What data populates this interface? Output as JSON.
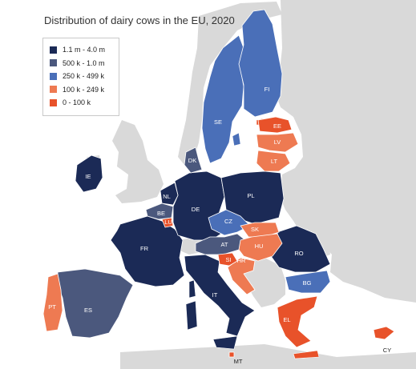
{
  "title": "Distribution of dairy cows in the EU, 2020",
  "colors": {
    "sea": "#ffffff",
    "non_eu_land": "#d9d9d9",
    "borders": "#ffffff",
    "class_1": "#1b2a56",
    "class_2": "#4b587d",
    "class_3": "#4a6fb8",
    "class_4": "#ee7a52",
    "class_5": "#e8522a"
  },
  "legend": {
    "items": [
      {
        "label": "1.1 m - 4.0 m",
        "class": "class_1"
      },
      {
        "label": "500 k - 1.0 m",
        "class": "class_2"
      },
      {
        "label": "250 k - 499 k",
        "class": "class_3"
      },
      {
        "label": "100 k - 249 k",
        "class": "class_4"
      },
      {
        "label": "0 - 100 k",
        "class": "class_5"
      }
    ]
  },
  "countries": [
    {
      "code": "FR",
      "class": "class_1"
    },
    {
      "code": "DE",
      "class": "class_1"
    },
    {
      "code": "NL",
      "class": "class_1"
    },
    {
      "code": "PL",
      "class": "class_1"
    },
    {
      "code": "IE",
      "class": "class_1"
    },
    {
      "code": "IT",
      "class": "class_1"
    },
    {
      "code": "RO",
      "class": "class_1"
    },
    {
      "code": "BE",
      "class": "class_2"
    },
    {
      "code": "DK",
      "class": "class_2"
    },
    {
      "code": "AT",
      "class": "class_2"
    },
    {
      "code": "ES",
      "class": "class_2"
    },
    {
      "code": "SE",
      "class": "class_3"
    },
    {
      "code": "FI",
      "class": "class_3"
    },
    {
      "code": "CZ",
      "class": "class_3"
    },
    {
      "code": "BG",
      "class": "class_3"
    },
    {
      "code": "LV",
      "class": "class_4"
    },
    {
      "code": "LT",
      "class": "class_4"
    },
    {
      "code": "SK",
      "class": "class_4"
    },
    {
      "code": "HU",
      "class": "class_4"
    },
    {
      "code": "HR",
      "class": "class_4"
    },
    {
      "code": "PT",
      "class": "class_4"
    },
    {
      "code": "EE",
      "class": "class_5"
    },
    {
      "code": "LU",
      "class": "class_5"
    },
    {
      "code": "SI",
      "class": "class_5"
    },
    {
      "code": "EL",
      "class": "class_5"
    },
    {
      "code": "MT",
      "class": "class_5"
    },
    {
      "code": "CY",
      "class": "class_5"
    }
  ]
}
